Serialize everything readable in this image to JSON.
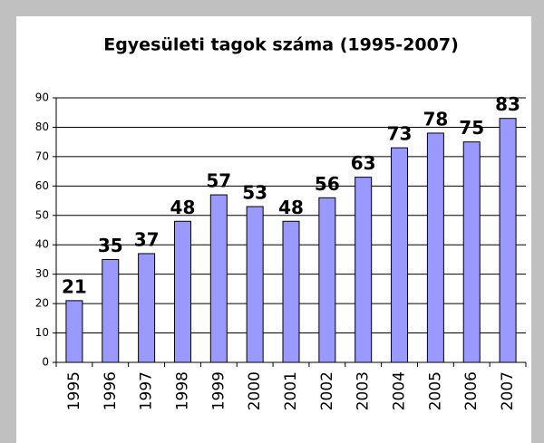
{
  "chart_data": {
    "type": "bar",
    "title": "Egyesületi tagok száma (1995-2007)",
    "categories": [
      "1995",
      "1996",
      "1997",
      "1998",
      "1999",
      "2000",
      "2001",
      "2002",
      "2003",
      "2004",
      "2005",
      "2006",
      "2007"
    ],
    "values": [
      21,
      35,
      37,
      48,
      57,
      53,
      48,
      56,
      63,
      73,
      78,
      75,
      83
    ],
    "color": "#9999ff",
    "ylim": [
      0,
      90
    ],
    "yticks": [
      0,
      10,
      20,
      30,
      40,
      50,
      60,
      70,
      80,
      90
    ],
    "grid": true
  }
}
